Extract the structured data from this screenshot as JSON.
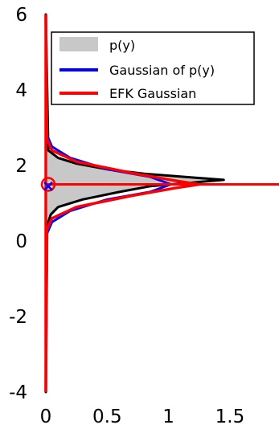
{
  "chart_data": {
    "type": "area",
    "title": "",
    "xlabel": "",
    "ylabel": "",
    "xlim": [
      0,
      1.9
    ],
    "ylim": [
      -4,
      6
    ],
    "x_ticks": [
      "0",
      "0.5",
      "1",
      "1.5"
    ],
    "y_ticks": [
      "-4",
      "-2",
      "0",
      "2",
      "4",
      "6"
    ],
    "grid": false,
    "legend_placement": "top-right",
    "orientation": "horizontal-density",
    "legend": [
      {
        "label": "p(y)",
        "marker": "patch",
        "color": "#c8c8c8"
      },
      {
        "label": "Gaussian of p(y)",
        "marker": "line",
        "color": "#0000ff"
      },
      {
        "label": "EFK Gaussian",
        "marker": "line",
        "color": "#ff0000"
      }
    ],
    "series": [
      {
        "name": "p(y)",
        "color": "#c8c8c8",
        "edge_color": "#000000",
        "points": [
          {
            "y": -4.0,
            "x": 0.0
          },
          {
            "y": 0.4,
            "x": 0.01
          },
          {
            "y": 0.7,
            "x": 0.04
          },
          {
            "y": 0.9,
            "x": 0.1
          },
          {
            "y": 1.1,
            "x": 0.3
          },
          {
            "y": 1.3,
            "x": 0.6
          },
          {
            "y": 1.45,
            "x": 0.85
          },
          {
            "y": 1.55,
            "x": 1.2
          },
          {
            "y": 1.62,
            "x": 1.45
          },
          {
            "y": 1.68,
            "x": 1.2
          },
          {
            "y": 1.78,
            "x": 0.8
          },
          {
            "y": 1.9,
            "x": 0.5
          },
          {
            "y": 2.05,
            "x": 0.25
          },
          {
            "y": 2.2,
            "x": 0.1
          },
          {
            "y": 2.4,
            "x": 0.02
          },
          {
            "y": 6.0,
            "x": 0.0
          }
        ]
      },
      {
        "name": "Gaussian of p(y)",
        "color": "#0000ff",
        "points": [
          {
            "y": -4.0,
            "x": 0.0
          },
          {
            "y": 0.2,
            "x": 0.01
          },
          {
            "y": 0.5,
            "x": 0.05
          },
          {
            "y": 0.8,
            "x": 0.2
          },
          {
            "y": 1.1,
            "x": 0.5
          },
          {
            "y": 1.3,
            "x": 0.85
          },
          {
            "y": 1.5,
            "x": 1.02
          },
          {
            "y": 1.7,
            "x": 0.85
          },
          {
            "y": 1.9,
            "x": 0.5
          },
          {
            "y": 2.2,
            "x": 0.2
          },
          {
            "y": 2.5,
            "x": 0.05
          },
          {
            "y": 2.8,
            "x": 0.01
          },
          {
            "y": 6.0,
            "x": 0.0
          }
        ]
      },
      {
        "name": "EFK Gaussian",
        "color": "#ff0000",
        "points": [
          {
            "y": -4.0,
            "x": 0.0
          },
          {
            "y": 0.3,
            "x": 0.01
          },
          {
            "y": 0.6,
            "x": 0.05
          },
          {
            "y": 0.9,
            "x": 0.25
          },
          {
            "y": 1.2,
            "x": 0.7
          },
          {
            "y": 1.4,
            "x": 1.05
          },
          {
            "y": 1.5,
            "x": 1.25
          },
          {
            "y": 1.6,
            "x": 1.05
          },
          {
            "y": 1.8,
            "x": 0.7
          },
          {
            "y": 2.1,
            "x": 0.25
          },
          {
            "y": 2.4,
            "x": 0.05
          },
          {
            "y": 2.7,
            "x": 0.01
          },
          {
            "y": 6.0,
            "x": 0.0
          }
        ]
      }
    ],
    "reference_line": {
      "y": 1.5,
      "x_start": 0,
      "x_end": 1.9,
      "color": "#ff0000"
    },
    "markers": [
      {
        "name": "EFK mean",
        "x": 0.02,
        "y": 1.5,
        "shape": "circle",
        "color": "#ff0000"
      },
      {
        "name": "true mean",
        "x": 0.02,
        "y": 1.45,
        "shape": "x",
        "color": "#0000ff"
      }
    ]
  }
}
